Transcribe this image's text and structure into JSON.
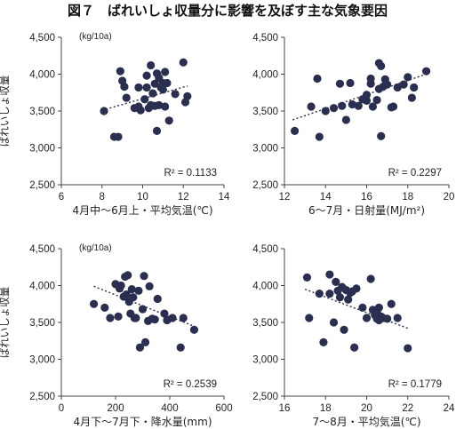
{
  "figure": {
    "title": "図７　ばれいしょ収量分に影響を及ぼす主な気象要因",
    "unit_label": "(kg/10a)",
    "ylabel": "ばれいしょ収量"
  },
  "colors": {
    "point": "#2b2f4f",
    "axis": "#444444",
    "text": "#222222"
  },
  "chart_data": [
    {
      "type": "scatter",
      "xlabel": "4月中～6月上・平均気温(℃)",
      "ylabel": "ばれいしょ収量",
      "xlim": [
        6,
        14
      ],
      "ylim": [
        2500,
        4500
      ],
      "xticks": [
        "6",
        "8",
        "10",
        "12",
        "14"
      ],
      "yticks": [
        "2,500",
        "3,000",
        "3,500",
        "4,000",
        "4,500"
      ],
      "r2": "R² = 0.1133",
      "trend": [
        [
          8.0,
          3510
        ],
        [
          12.2,
          3840
        ]
      ],
      "x": [
        8.1,
        8.6,
        8.8,
        8.9,
        9.0,
        9.1,
        9.2,
        9.6,
        9.8,
        9.8,
        9.9,
        10.1,
        10.2,
        10.2,
        10.3,
        10.4,
        10.4,
        10.5,
        10.6,
        10.6,
        10.7,
        10.7,
        10.8,
        10.8,
        10.9,
        11.0,
        11.0,
        11.1,
        11.1,
        11.2,
        11.3,
        11.6,
        12.0,
        12.1,
        12.2
      ],
      "y": [
        3500,
        3150,
        3150,
        4040,
        3910,
        3830,
        3680,
        3540,
        3820,
        3560,
        3510,
        3660,
        3820,
        3980,
        3540,
        4120,
        3580,
        3740,
        3870,
        3570,
        4010,
        3230,
        3950,
        3580,
        3820,
        3880,
        3790,
        4030,
        3560,
        3880,
        3370,
        3730,
        4160,
        3620,
        3700
      ]
    },
    {
      "type": "scatter",
      "xlabel": "6～7月・日射量(MJ/m²)",
      "ylabel": "",
      "xlim": [
        12,
        20
      ],
      "ylim": [
        2500,
        4500
      ],
      "xticks": [
        "12",
        "14",
        "16",
        "18",
        "20"
      ],
      "yticks": [
        "2,500",
        "3,000",
        "3,500",
        "4,000",
        "4,500"
      ],
      "r2": "R² = 0.2297",
      "trend": [
        [
          12.4,
          3380
        ],
        [
          19.0,
          4010
        ]
      ],
      "x": [
        12.5,
        13.3,
        13.6,
        13.7,
        14.0,
        14.4,
        14.7,
        14.8,
        15.0,
        15.2,
        15.3,
        15.6,
        15.8,
        16.0,
        16.0,
        16.2,
        16.2,
        16.3,
        16.5,
        16.6,
        16.6,
        16.7,
        16.7,
        16.8,
        16.9,
        17.0,
        17.2,
        17.3,
        17.5,
        17.8,
        18.0,
        18.2,
        18.3,
        18.9
      ],
      "y": [
        3230,
        3560,
        3940,
        3150,
        3500,
        3540,
        3870,
        3570,
        3380,
        3880,
        3590,
        3570,
        3660,
        3640,
        3720,
        3870,
        3940,
        3560,
        3650,
        3800,
        4150,
        3160,
        4110,
        3830,
        3930,
        3860,
        3550,
        3560,
        3820,
        3860,
        3960,
        3680,
        3820,
        4040
      ]
    },
    {
      "type": "scatter",
      "xlabel": "4月下～7月下・降水量(mm)",
      "ylabel": "ばれいしょ収量",
      "xlim": [
        0,
        600
      ],
      "ylim": [
        2500,
        4500
      ],
      "xticks": [
        "0",
        "200",
        "400",
        "600"
      ],
      "yticks": [
        "2,500",
        "3,000",
        "3,500",
        "4,000",
        "4,500"
      ],
      "r2": "R² = 0.2539",
      "trend": [
        [
          120,
          3990
        ],
        [
          495,
          3440
        ]
      ],
      "x": [
        120,
        160,
        180,
        200,
        210,
        215,
        220,
        230,
        235,
        240,
        245,
        250,
        255,
        260,
        265,
        270,
        275,
        285,
        290,
        300,
        305,
        310,
        320,
        325,
        335,
        345,
        355,
        380,
        390,
        410,
        440,
        450,
        490
      ],
      "y": [
        3750,
        3700,
        3560,
        4020,
        3580,
        3960,
        4000,
        3850,
        4120,
        3880,
        4140,
        3780,
        3620,
        3950,
        3840,
        3560,
        3560,
        3930,
        3160,
        3680,
        4130,
        3230,
        3520,
        3990,
        3550,
        3540,
        3820,
        3620,
        3530,
        3560,
        3160,
        3560,
        3400
      ]
    },
    {
      "type": "scatter",
      "xlabel": "7～8月・平均気温(℃)",
      "ylabel": "",
      "xlim": [
        16,
        24
      ],
      "ylim": [
        2500,
        4500
      ],
      "xticks": [
        "16",
        "18",
        "20",
        "22",
        "24"
      ],
      "yticks": [
        "2,500",
        "3,000",
        "3,500",
        "4,000",
        "4,500"
      ],
      "r2": "R² = 0.1779",
      "trend": [
        [
          17.0,
          3950
        ],
        [
          22.0,
          3420
        ]
      ],
      "x": [
        17.1,
        17.2,
        17.7,
        17.9,
        18.2,
        18.2,
        18.4,
        18.5,
        18.6,
        18.7,
        18.8,
        18.9,
        19.0,
        19.1,
        19.2,
        19.3,
        19.4,
        19.5,
        19.8,
        20.0,
        20.2,
        20.3,
        20.4,
        20.5,
        20.5,
        20.6,
        20.6,
        20.7,
        20.8,
        21.0,
        21.2,
        21.5,
        22.0
      ],
      "y": [
        4110,
        3560,
        3890,
        3230,
        4150,
        3890,
        3500,
        4050,
        3930,
        3840,
        3980,
        3400,
        3940,
        3810,
        3900,
        3920,
        3160,
        3960,
        3700,
        3560,
        4090,
        3670,
        3600,
        3550,
        3640,
        3700,
        3530,
        3580,
        3560,
        3550,
        3750,
        3560,
        3150
      ]
    }
  ]
}
